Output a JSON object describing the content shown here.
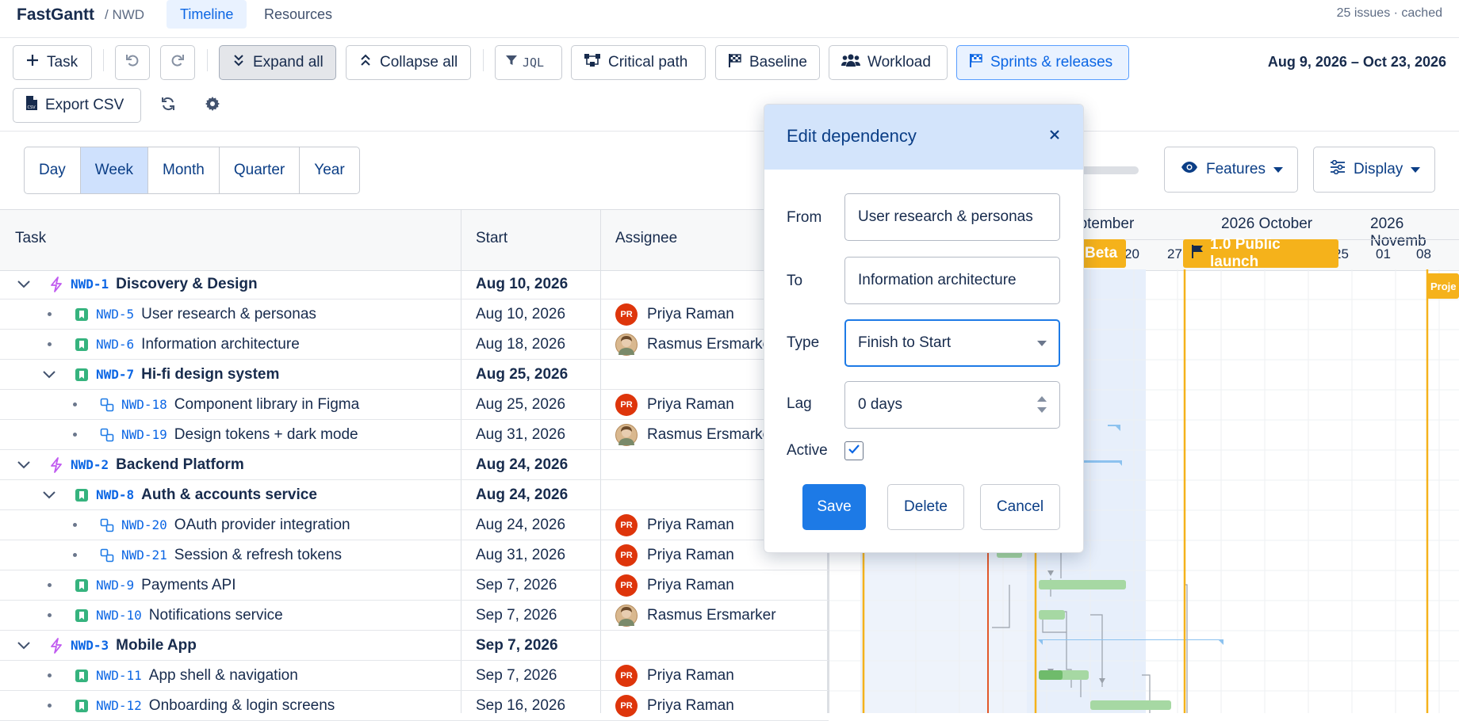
{
  "header": {
    "brand": "FastGantt",
    "project": "/ NWD",
    "tabs": [
      {
        "label": "Timeline",
        "active": true
      },
      {
        "label": "Resources",
        "active": false
      }
    ],
    "status": "25 issues · cached"
  },
  "toolbar": {
    "task": "Task",
    "expand_all": "Expand all",
    "collapse_all": "Collapse all",
    "jql": "JQL",
    "critical_path": "Critical path",
    "baseline": "Baseline",
    "workload": "Workload",
    "sprints_releases": "Sprints & releases",
    "export_csv": "Export CSV",
    "date_range": "Aug 9, 2026 – Oct 23, 2026"
  },
  "scale": {
    "options": [
      "Day",
      "Week",
      "Month",
      "Quarter",
      "Year"
    ],
    "selected": "Week"
  },
  "view_menus": {
    "features": "Features",
    "display": "Display"
  },
  "grid": {
    "columns": {
      "task": "Task",
      "start": "Start",
      "assignee": "Assignee"
    },
    "rows": [
      {
        "level": 0,
        "type": "epic",
        "key": "NWD-1",
        "name": "Discovery & Design",
        "start": "Aug 10, 2026",
        "assignee": "",
        "expandable": true
      },
      {
        "level": 1,
        "type": "story",
        "key": "NWD-5",
        "name": "User research & personas",
        "start": "Aug 10, 2026",
        "assignee": "Priya Raman",
        "avatar": "PR"
      },
      {
        "level": 1,
        "type": "story",
        "key": "NWD-6",
        "name": "Information architecture",
        "start": "Aug 18, 2026",
        "assignee": "Rasmus Ersmarker",
        "avatar": "photo"
      },
      {
        "level": 1,
        "type": "story",
        "key": "NWD-7",
        "name": "Hi-fi design system",
        "start": "Aug 25, 2026",
        "assignee": "",
        "expandable": true
      },
      {
        "level": 2,
        "type": "subtask",
        "key": "NWD-18",
        "name": "Component library in Figma",
        "start": "Aug 25, 2026",
        "assignee": "Priya Raman",
        "avatar": "PR"
      },
      {
        "level": 2,
        "type": "subtask",
        "key": "NWD-19",
        "name": "Design tokens + dark mode",
        "start": "Aug 31, 2026",
        "assignee": "Rasmus Ersmarker",
        "avatar": "photo"
      },
      {
        "level": 0,
        "type": "epic",
        "key": "NWD-2",
        "name": "Backend Platform",
        "start": "Aug 24, 2026",
        "assignee": "",
        "expandable": true
      },
      {
        "level": 1,
        "type": "story",
        "key": "NWD-8",
        "name": "Auth & accounts service",
        "start": "Aug 24, 2026",
        "assignee": "",
        "expandable": true
      },
      {
        "level": 2,
        "type": "subtask",
        "key": "NWD-20",
        "name": "OAuth provider integration",
        "start": "Aug 24, 2026",
        "assignee": "Priya Raman",
        "avatar": "PR"
      },
      {
        "level": 2,
        "type": "subtask",
        "key": "NWD-21",
        "name": "Session & refresh tokens",
        "start": "Aug 31, 2026",
        "assignee": "Priya Raman",
        "avatar": "PR"
      },
      {
        "level": 1,
        "type": "story",
        "key": "NWD-9",
        "name": "Payments API",
        "start": "Sep 7, 2026",
        "assignee": "Priya Raman",
        "avatar": "PR"
      },
      {
        "level": 1,
        "type": "story",
        "key": "NWD-10",
        "name": "Notifications service",
        "start": "Sep 7, 2026",
        "assignee": "Rasmus Ersmarker",
        "avatar": "photo"
      },
      {
        "level": 0,
        "type": "epic",
        "key": "NWD-3",
        "name": "Mobile App",
        "start": "Sep 7, 2026",
        "assignee": "",
        "expandable": true
      },
      {
        "level": 1,
        "type": "story",
        "key": "NWD-11",
        "name": "App shell & navigation",
        "start": "Sep 7, 2026",
        "assignee": "Priya Raman",
        "avatar": "PR"
      },
      {
        "level": 1,
        "type": "story",
        "key": "NWD-12",
        "name": "Onboarding & login screens",
        "start": "Sep 16, 2026",
        "assignee": "Priya Raman",
        "avatar": "PR"
      }
    ]
  },
  "timeline": {
    "months": [
      "eptember",
      "2026 October",
      "2026 Novemb"
    ],
    "days": [
      "20",
      "27",
      "25",
      "01",
      "08"
    ],
    "milestones": [
      {
        "label": "Beta"
      },
      {
        "label": "1.0 Public launch"
      },
      {
        "label": "Proje"
      }
    ]
  },
  "dialog": {
    "title": "Edit dependency",
    "from_label": "From",
    "from_value": "User research & personas",
    "to_label": "To",
    "to_value": "Information architecture",
    "type_label": "Type",
    "type_value": "Finish to Start",
    "lag_label": "Lag",
    "lag_value": "0 days",
    "active_label": "Active",
    "active_checked": true,
    "save": "Save",
    "delete": "Delete",
    "cancel": "Cancel"
  },
  "colors": {
    "accent": "#1d7ae6",
    "epic_icon": "#c05bf0",
    "story_icon": "#36b37e",
    "subtask_icon": "#1d7ae6",
    "milestone": "#f5b21b",
    "today_line": "#e2582a",
    "bar_green": "#a6d8a3",
    "bar_blue": "#8cc2ef"
  }
}
